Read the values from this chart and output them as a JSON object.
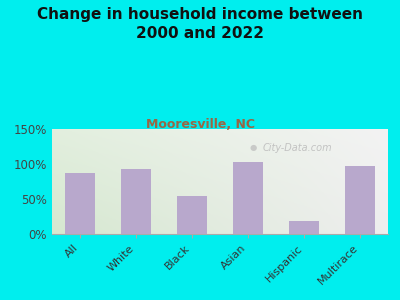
{
  "title": "Change in household income between\n2000 and 2022",
  "subtitle": "Mooresville, NC",
  "categories": [
    "All",
    "White",
    "Black",
    "Asian",
    "Hispanic",
    "Multirace"
  ],
  "values": [
    87,
    93,
    55,
    103,
    18,
    97
  ],
  "bar_color": "#b8a8cc",
  "background_color": "#00EEEE",
  "plot_bg_left": "#d6e8d0",
  "plot_bg_right": "#e8e8e8",
  "title_fontsize": 11,
  "subtitle_fontsize": 9,
  "subtitle_color": "#996644",
  "ylim": [
    0,
    150
  ],
  "yticks": [
    0,
    50,
    100,
    150
  ],
  "watermark": "City-Data.com"
}
